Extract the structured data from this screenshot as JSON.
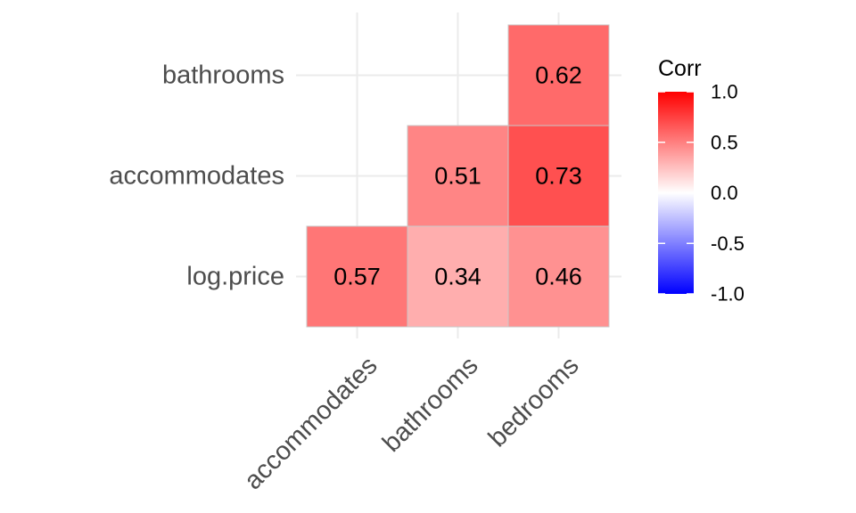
{
  "chart_data": {
    "type": "heatmap",
    "x_categories": [
      "accommodates",
      "bathrooms",
      "bedrooms"
    ],
    "y_categories": [
      "log.price",
      "accommodates",
      "bathrooms"
    ],
    "cells": [
      {
        "x": "accommodates",
        "y": "log.price",
        "value": 0.57,
        "label": "0.57"
      },
      {
        "x": "bathrooms",
        "y": "log.price",
        "value": 0.34,
        "label": "0.34"
      },
      {
        "x": "bedrooms",
        "y": "log.price",
        "value": 0.46,
        "label": "0.46"
      },
      {
        "x": "bathrooms",
        "y": "accommodates",
        "value": 0.51,
        "label": "0.51"
      },
      {
        "x": "bedrooms",
        "y": "accommodates",
        "value": 0.73,
        "label": "0.73"
      },
      {
        "x": "bedrooms",
        "y": "bathrooms",
        "value": 0.62,
        "label": "0.62"
      }
    ],
    "legend": {
      "title": "Corr",
      "range": [
        -1,
        1
      ],
      "ticks": [
        1.0,
        0.5,
        0.0,
        -0.5,
        -1.0
      ],
      "tick_labels": [
        "1.0",
        "0.5",
        "0.0",
        "-0.5",
        "-1.0"
      ],
      "colors": {
        "low": "#0000ff",
        "mid": "#ffffff",
        "high": "#ff0000"
      }
    },
    "grid": true,
    "legend_position": "right"
  }
}
